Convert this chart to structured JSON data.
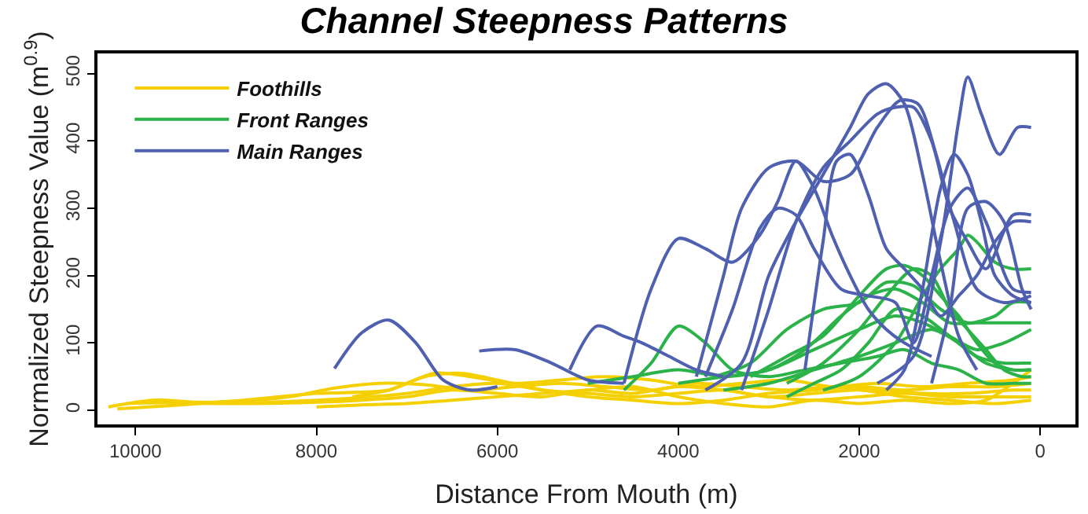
{
  "chart_data": {
    "type": "line",
    "title": "Channel Steepness Patterns",
    "xlabel": "Distance From Mouth (m)",
    "ylabel": "Normalized Steepness Value (m$^{0.9}$)",
    "xlim": [
      10420,
      -390
    ],
    "xticks": [
      10000,
      8000,
      6000,
      4000,
      2000,
      0
    ],
    "ylim": [
      -21,
      530
    ],
    "yticks": [
      0,
      100,
      200,
      300,
      400,
      500
    ],
    "legend": "top left",
    "marker": "none",
    "line_style": "solid",
    "series": [
      {
        "name": "Foothills",
        "color": "#f5d000",
        "x": [
          10300,
          9800,
          9300,
          8800,
          8300,
          7800,
          7300,
          6800,
          6300,
          5800,
          5300,
          4800,
          4300,
          3800,
          3300,
          2800,
          2300,
          1800,
          1300,
          800,
          300,
          100
        ],
        "values": [
          5,
          15,
          12,
          14,
          20,
          33,
          40,
          38,
          30,
          35,
          40,
          35,
          30,
          40,
          35,
          30,
          35,
          30,
          25,
          25,
          30,
          30
        ]
      },
      {
        "color": "#f5d000",
        "x": [
          10200,
          9500,
          8800,
          8000,
          7200,
          6700,
          6300,
          5800,
          5300,
          4800,
          4300,
          3800,
          3300,
          2800,
          2300,
          1800,
          1300,
          800,
          300,
          100
        ],
        "values": [
          2,
          8,
          15,
          25,
          30,
          55,
          50,
          40,
          45,
          50,
          45,
          35,
          40,
          45,
          35,
          40,
          35,
          40,
          45,
          50
        ]
      },
      {
        "color": "#f5d000",
        "x": [
          10100,
          9500,
          8800,
          8000,
          7500,
          7000,
          6500,
          6000,
          5500,
          5000,
          4500,
          4000,
          3500,
          3000,
          2500,
          2000,
          1500,
          1000,
          500,
          100
        ],
        "values": [
          10,
          12,
          10,
          12,
          15,
          20,
          30,
          25,
          20,
          30,
          25,
          35,
          30,
          20,
          15,
          20,
          25,
          20,
          20,
          20
        ]
      },
      {
        "color": "#f5d000",
        "x": [
          8000,
          7500,
          7000,
          6500,
          6000,
          5500,
          5000,
          4500,
          4000,
          3500,
          3000,
          2500,
          2000,
          1500,
          1000,
          600,
          300,
          100
        ],
        "values": [
          5,
          8,
          10,
          15,
          20,
          25,
          30,
          35,
          20,
          10,
          5,
          15,
          10,
          15,
          10,
          15,
          40,
          60
        ]
      },
      {
        "color": "#f5d000",
        "x": [
          7600,
          7200,
          6800,
          6400,
          6000,
          5500,
          5000,
          4500,
          4000,
          3500,
          3000,
          2500,
          2000,
          1500,
          1000,
          500,
          100
        ],
        "values": [
          20,
          30,
          50,
          55,
          45,
          30,
          25,
          20,
          25,
          30,
          20,
          25,
          30,
          20,
          15,
          10,
          15
        ]
      },
      {
        "color": "#f5d000",
        "x": [
          10000,
          9000,
          8000,
          7400,
          7000,
          6500,
          6000,
          5500,
          5000,
          4500,
          4000,
          3500,
          3000,
          2500,
          2000,
          1500,
          1000,
          500,
          100
        ],
        "values": [
          12,
          10,
          15,
          20,
          25,
          35,
          40,
          30,
          20,
          15,
          10,
          15,
          25,
          30,
          35,
          30,
          35,
          35,
          40
        ]
      },
      {
        "name": "Front Ranges",
        "color": "#2bb34a",
        "x": [
          4600,
          4300,
          4000,
          3700,
          3400,
          3000,
          2600,
          2200,
          1800,
          1500,
          1200,
          900,
          600,
          300,
          100
        ],
        "values": [
          30,
          70,
          125,
          100,
          60,
          50,
          60,
          70,
          80,
          90,
          70,
          60,
          40,
          40,
          40
        ]
      },
      {
        "color": "#2bb34a",
        "x": [
          3200,
          2800,
          2400,
          2000,
          1700,
          1500,
          1300,
          1100,
          900,
          700,
          500,
          300,
          100
        ],
        "values": [
          50,
          80,
          110,
          170,
          210,
          215,
          200,
          170,
          140,
          100,
          70,
          60,
          60
        ]
      },
      {
        "color": "#2bb34a",
        "x": [
          2800,
          2400,
          2000,
          1700,
          1400,
          1200,
          1000,
          800,
          600,
          400,
          200,
          100
        ],
        "values": [
          40,
          70,
          120,
          170,
          210,
          200,
          150,
          120,
          90,
          60,
          50,
          50
        ]
      },
      {
        "color": "#2bb34a",
        "x": [
          2400,
          2000,
          1600,
          1300,
          1100,
          900,
          800,
          700,
          500,
          300,
          100
        ],
        "values": [
          30,
          50,
          100,
          170,
          210,
          240,
          260,
          250,
          220,
          210,
          210
        ]
      },
      {
        "color": "#2bb34a",
        "x": [
          3600,
          3200,
          2800,
          2400,
          2000,
          1700,
          1400,
          1100,
          800,
          500,
          300,
          100
        ],
        "values": [
          50,
          70,
          120,
          150,
          160,
          190,
          185,
          150,
          130,
          140,
          160,
          160
        ]
      },
      {
        "color": "#2bb34a",
        "x": [
          4000,
          3500,
          3000,
          2600,
          2200,
          1900,
          1600,
          1300,
          1000,
          700,
          400,
          100
        ],
        "values": [
          40,
          50,
          60,
          90,
          140,
          170,
          180,
          160,
          130,
          130,
          130,
          130
        ]
      },
      {
        "color": "#2bb34a",
        "x": [
          5000,
          4500,
          4000,
          3500,
          3000,
          2500,
          2000,
          1600,
          1300,
          1000,
          700,
          400,
          100
        ],
        "values": [
          40,
          50,
          60,
          50,
          60,
          90,
          120,
          140,
          130,
          110,
          90,
          100,
          120
        ]
      },
      {
        "color": "#2bb34a",
        "x": [
          2800,
          2500,
          2200,
          1900,
          1600,
          1300,
          1000,
          700,
          400,
          200,
          100
        ],
        "values": [
          20,
          40,
          60,
          100,
          150,
          140,
          110,
          80,
          70,
          70,
          70
        ]
      },
      {
        "color": "#2bb34a",
        "x": [
          3500,
          3000,
          2500,
          2000,
          1600,
          1200,
          900,
          600,
          300,
          100
        ],
        "values": [
          30,
          40,
          60,
          80,
          100,
          120,
          100,
          70,
          60,
          60
        ]
      },
      {
        "name": "Main Ranges",
        "color": "#5060b0",
        "x": [
          1800,
          1400,
          1100,
          900,
          800,
          650,
          450,
          250,
          100
        ],
        "values": [
          40,
          80,
          250,
          430,
          495,
          440,
          380,
          420,
          420
        ]
      },
      {
        "color": "#5060b0",
        "x": [
          3700,
          3300,
          3000,
          2700,
          2400,
          2100,
          1900,
          1700,
          1500,
          1300,
          1100,
          900,
          700
        ],
        "values": [
          30,
          70,
          200,
          280,
          350,
          420,
          470,
          485,
          455,
          350,
          220,
          110,
          60
        ]
      },
      {
        "color": "#5060b0",
        "x": [
          3800,
          3500,
          3300,
          3000,
          2700,
          2400,
          2100,
          1800,
          1550,
          1350,
          1150,
          950,
          700,
          400,
          100
        ],
        "values": [
          50,
          200,
          300,
          360,
          370,
          340,
          350,
          420,
          460,
          455,
          380,
          280,
          180,
          160,
          170
        ]
      },
      {
        "color": "#5060b0",
        "x": [
          3300,
          3000,
          2700,
          2400,
          2100,
          1800,
          1600,
          1400,
          1200,
          1000,
          800,
          600,
          300,
          100
        ],
        "values": [
          30,
          150,
          280,
          360,
          400,
          440,
          450,
          450,
          400,
          300,
          250,
          210,
          290,
          290
        ]
      },
      {
        "color": "#5060b0",
        "x": [
          2600,
          2400,
          2250,
          2100,
          1900,
          1700,
          1500,
          1300,
          1100,
          900,
          700,
          500,
          300,
          100
        ],
        "values": [
          60,
          250,
          370,
          380,
          320,
          240,
          210,
          180,
          140,
          170,
          200,
          250,
          280,
          280
        ]
      },
      {
        "color": "#5060b0",
        "x": [
          4600,
          4300,
          4000,
          3700,
          3400,
          3100,
          2900,
          2700,
          2500,
          2300,
          2100,
          1900,
          1700,
          1500,
          1200
        ],
        "values": [
          40,
          180,
          255,
          240,
          220,
          260,
          310,
          370,
          330,
          260,
          200,
          150,
          120,
          100,
          80
        ]
      },
      {
        "color": "#5060b0",
        "x": [
          3700,
          3400,
          3100,
          2900,
          2700,
          2500,
          2200,
          1900,
          1600,
          1400,
          1200,
          1000,
          800,
          600,
          300,
          100
        ],
        "values": [
          50,
          150,
          270,
          300,
          290,
          240,
          180,
          170,
          160,
          100,
          200,
          300,
          330,
          280,
          180,
          175
        ]
      },
      {
        "color": "#5060b0",
        "x": [
          1700,
          1500,
          1300,
          1100,
          950,
          800,
          650,
          500,
          300,
          100
        ],
        "values": [
          30,
          60,
          180,
          330,
          380,
          350,
          280,
          200,
          170,
          160
        ]
      },
      {
        "color": "#5060b0",
        "x": [
          5200,
          4900,
          4600,
          4400,
          4100,
          3800,
          3500
        ],
        "values": [
          60,
          125,
          110,
          100,
          80,
          60,
          50
        ]
      },
      {
        "color": "#5060b0",
        "x": [
          7800,
          7500,
          7200,
          6900,
          6600,
          6300,
          6000
        ],
        "values": [
          62,
          115,
          134,
          100,
          45,
          30,
          35
        ]
      },
      {
        "color": "#5060b0",
        "x": [
          6200,
          5800,
          5400,
          5000,
          4600
        ],
        "values": [
          88,
          90,
          70,
          45,
          40
        ]
      },
      {
        "color": "#5060b0",
        "x": [
          1200,
          1000,
          800,
          600,
          400,
          200,
          100
        ],
        "values": [
          40,
          150,
          300,
          310,
          280,
          180,
          150
        ]
      }
    ]
  }
}
